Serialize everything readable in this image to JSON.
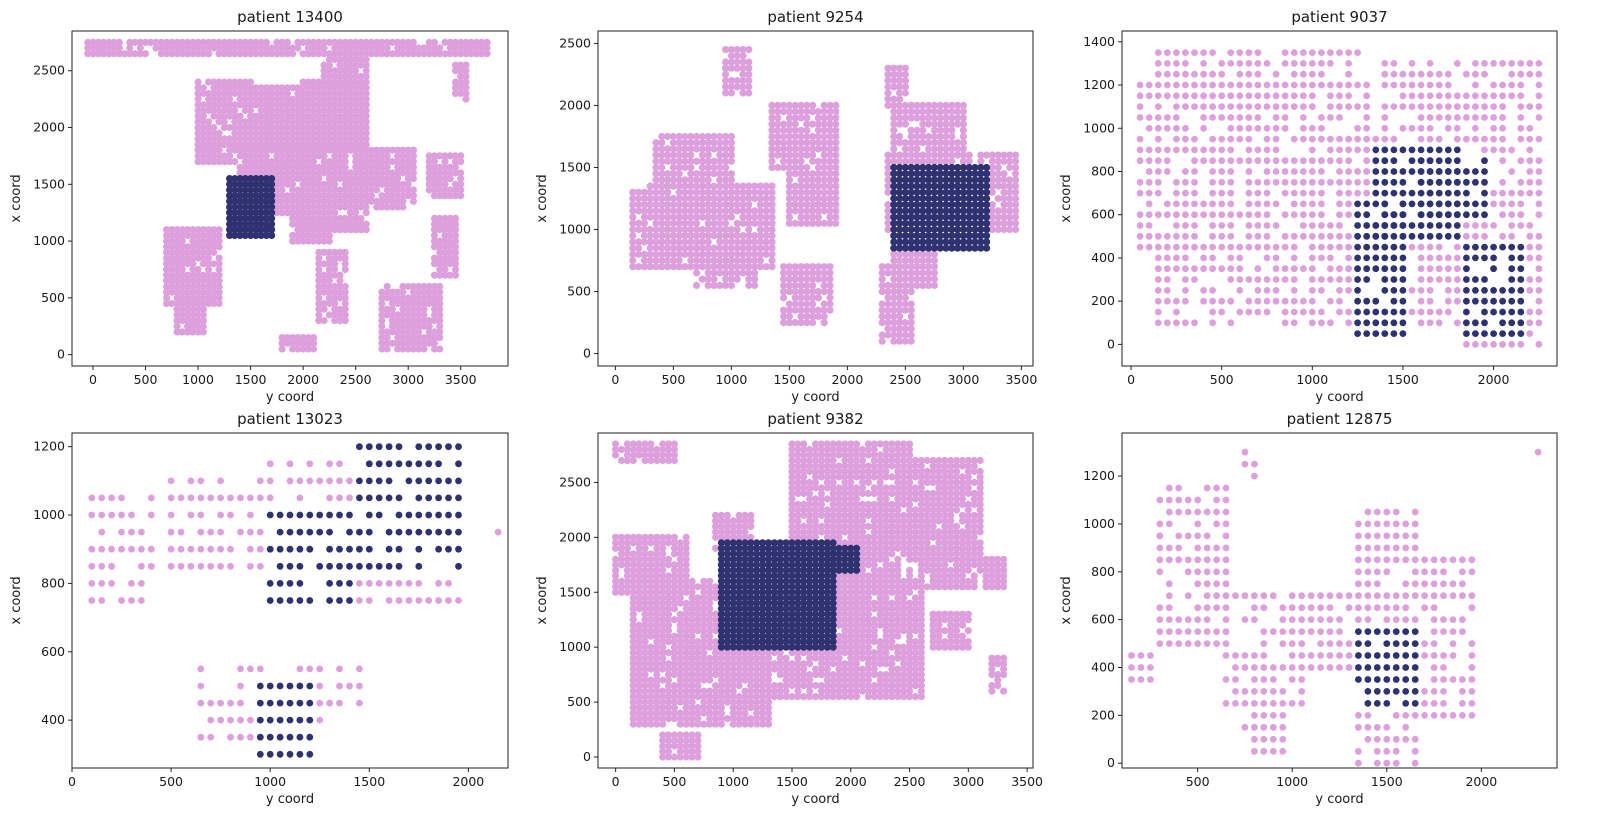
{
  "colors": {
    "healthy": "#dda0dd",
    "cancer": "#2f3270"
  },
  "chart_data": [
    {
      "type": "scatter",
      "title": "patient 13400",
      "xlabel": "y coord",
      "ylabel": "x coord",
      "xlim": [
        -200,
        3950
      ],
      "ylim": [
        -100,
        2850
      ],
      "xticks": [
        0,
        500,
        1000,
        1500,
        2000,
        2500,
        3000,
        3500
      ],
      "yticks": [
        0,
        500,
        1000,
        1500,
        2000,
        2500
      ],
      "step": 50,
      "healthy_regions": [
        [
          [
            -50,
            2650
          ],
          [
            3750,
            2750
          ]
        ],
        [
          [
            1000,
            1700
          ],
          [
            1500,
            2400
          ]
        ],
        [
          [
            1400,
            1250
          ],
          [
            2100,
            2000
          ]
        ],
        [
          [
            2000,
            1100
          ],
          [
            2600,
            2400
          ]
        ],
        [
          [
            2200,
            2100
          ],
          [
            2600,
            2650
          ]
        ],
        [
          [
            1500,
            1800
          ],
          [
            2500,
            2350
          ]
        ],
        [
          [
            700,
            450
          ],
          [
            1200,
            1100
          ]
        ],
        [
          [
            800,
            200
          ],
          [
            1050,
            600
          ]
        ],
        [
          [
            2500,
            1300
          ],
          [
            3050,
            1800
          ]
        ],
        [
          [
            1900,
            1000
          ],
          [
            2250,
            1350
          ]
        ],
        [
          [
            2150,
            300
          ],
          [
            2400,
            900
          ]
        ],
        [
          [
            3200,
            1400
          ],
          [
            3500,
            1750
          ]
        ],
        [
          [
            3250,
            700
          ],
          [
            3450,
            1200
          ]
        ],
        [
          [
            2750,
            50
          ],
          [
            3300,
            600
          ]
        ],
        [
          [
            1800,
            50
          ],
          [
            2100,
            150
          ]
        ],
        [
          [
            3450,
            2250
          ],
          [
            3550,
            2550
          ]
        ]
      ],
      "cancer_regions": [
        [
          [
            1300,
            1050
          ],
          [
            1700,
            1550
          ]
        ]
      ]
    },
    {
      "type": "scatter",
      "title": "patient 9254",
      "xlabel": "y coord",
      "ylabel": "x coord",
      "xlim": [
        -150,
        3600
      ],
      "ylim": [
        -100,
        2600
      ],
      "xticks": [
        0,
        500,
        1000,
        1500,
        2000,
        2500,
        3000,
        3500
      ],
      "yticks": [
        0,
        500,
        1000,
        1500,
        2000,
        2500
      ],
      "step": 50,
      "healthy_regions": [
        [
          [
            150,
            700
          ],
          [
            1350,
            1350
          ]
        ],
        [
          [
            350,
            1350
          ],
          [
            1000,
            1750
          ]
        ],
        [
          [
            700,
            550
          ],
          [
            1200,
            800
          ]
        ],
        [
          [
            1350,
            1500
          ],
          [
            1900,
            2000
          ]
        ],
        [
          [
            1500,
            1050
          ],
          [
            1900,
            1500
          ]
        ],
        [
          [
            1450,
            250
          ],
          [
            1850,
            700
          ]
        ],
        [
          [
            2300,
            100
          ],
          [
            2550,
            700
          ]
        ],
        [
          [
            2400,
            550
          ],
          [
            2750,
            1000
          ]
        ],
        [
          [
            2350,
            1000
          ],
          [
            3450,
            1600
          ]
        ],
        [
          [
            2400,
            1600
          ],
          [
            3000,
            2000
          ]
        ],
        [
          [
            2350,
            2000
          ],
          [
            2500,
            2300
          ]
        ],
        [
          [
            950,
            2100
          ],
          [
            1150,
            2450
          ]
        ]
      ],
      "cancer_regions": [
        [
          [
            2400,
            850
          ],
          [
            3200,
            1500
          ]
        ]
      ]
    },
    {
      "type": "scatter",
      "title": "patient 9037",
      "xlabel": "y coord",
      "ylabel": "x coord",
      "xlim": [
        -50,
        2350
      ],
      "ylim": [
        -100,
        1450
      ],
      "xticks": [
        0,
        500,
        1000,
        1500,
        2000
      ],
      "yticks": [
        0,
        200,
        400,
        600,
        800,
        1000,
        1200,
        1400
      ],
      "step": 50,
      "healthy_regions": [
        [
          [
            50,
            450
          ],
          [
            1300,
            1200
          ]
        ],
        [
          [
            150,
            100
          ],
          [
            1350,
            450
          ]
        ],
        [
          [
            150,
            1200
          ],
          [
            1250,
            1350
          ]
        ],
        [
          [
            1300,
            100
          ],
          [
            2250,
            1100
          ]
        ],
        [
          [
            1400,
            1100
          ],
          [
            2250,
            1300
          ]
        ],
        [
          [
            1850,
            0
          ],
          [
            2250,
            200
          ]
        ]
      ],
      "cancer_regions": [
        [
          [
            1250,
            50
          ],
          [
            1500,
            650
          ]
        ],
        [
          [
            1350,
            500
          ],
          [
            1800,
            900
          ]
        ],
        [
          [
            1600,
            600
          ],
          [
            1950,
            850
          ]
        ],
        [
          [
            1850,
            50
          ],
          [
            2150,
            450
          ]
        ]
      ]
    },
    {
      "type": "scatter",
      "title": "patient 13023",
      "xlabel": "y coord",
      "ylabel": "x coord",
      "xlim": [
        0,
        2200
      ],
      "ylim": [
        260,
        1240
      ],
      "xticks": [
        0,
        500,
        1000,
        1500,
        2000
      ],
      "yticks": [
        400,
        600,
        800,
        1000,
        1200
      ],
      "step": 50,
      "healthy_regions": [
        [
          [
            100,
            750
          ],
          [
            400,
            1050
          ]
        ],
        [
          [
            500,
            850
          ],
          [
            950,
            1100
          ]
        ],
        [
          [
            650,
            350
          ],
          [
            1300,
            550
          ]
        ],
        [
          [
            1350,
            450
          ],
          [
            1450,
            550
          ]
        ],
        [
          [
            1000,
            750
          ],
          [
            1950,
            1150
          ]
        ],
        [
          [
            2150,
            950
          ],
          [
            2150,
            950
          ]
        ]
      ],
      "cancer_regions": [
        [
          [
            950,
            300
          ],
          [
            1200,
            500
          ]
        ],
        [
          [
            1000,
            750
          ],
          [
            1400,
            1000
          ]
        ],
        [
          [
            1450,
            850
          ],
          [
            1950,
            1200
          ]
        ]
      ]
    },
    {
      "type": "scatter",
      "title": "patient 9382",
      "xlabel": "y coord",
      "ylabel": "x coord",
      "xlim": [
        -150,
        3550
      ],
      "ylim": [
        -100,
        2950
      ],
      "xticks": [
        0,
        500,
        1000,
        1500,
        2000,
        2500,
        3000,
        3500
      ],
      "yticks": [
        0,
        500,
        1000,
        1500,
        2000,
        2500
      ],
      "step": 50,
      "healthy_regions": [
        [
          [
            0,
            1500
          ],
          [
            600,
            2000
          ]
        ],
        [
          [
            150,
            300
          ],
          [
            1300,
            1600
          ]
        ],
        [
          [
            1200,
            550
          ],
          [
            2600,
            1600
          ]
        ],
        [
          [
            1500,
            1500
          ],
          [
            2500,
            2850
          ]
        ],
        [
          [
            2500,
            1800
          ],
          [
            3100,
            2700
          ]
        ],
        [
          [
            2600,
            1550
          ],
          [
            3300,
            1800
          ]
        ],
        [
          [
            400,
            0
          ],
          [
            700,
            200
          ]
        ],
        [
          [
            0,
            2700
          ],
          [
            500,
            2850
          ]
        ],
        [
          [
            3200,
            600
          ],
          [
            3300,
            900
          ]
        ],
        [
          [
            2700,
            1000
          ],
          [
            3000,
            1300
          ]
        ],
        [
          [
            850,
            1900
          ],
          [
            1150,
            2200
          ]
        ]
      ],
      "cancer_regions": [
        [
          [
            900,
            1000
          ],
          [
            1850,
            1950
          ]
        ],
        [
          [
            1800,
            1700
          ],
          [
            2050,
            1900
          ]
        ]
      ]
    },
    {
      "type": "scatter",
      "title": "patient 12875",
      "xlabel": "y coord",
      "ylabel": "x coord",
      "xlim": [
        100,
        2400
      ],
      "ylim": [
        -20,
        1380
      ],
      "xticks": [
        500,
        1000,
        1500,
        2000
      ],
      "yticks": [
        0,
        200,
        400,
        600,
        800,
        1000,
        1200
      ],
      "step": 50,
      "healthy_regions": [
        [
          [
            150,
            350
          ],
          [
            250,
            450
          ]
        ],
        [
          [
            300,
            500
          ],
          [
            650,
            1150
          ]
        ],
        [
          [
            650,
            250
          ],
          [
            1050,
            700
          ]
        ],
        [
          [
            750,
            50
          ],
          [
            950,
            250
          ]
        ],
        [
          [
            1000,
            400
          ],
          [
            1300,
            700
          ]
        ],
        [
          [
            1350,
            0
          ],
          [
            1650,
            1050
          ]
        ],
        [
          [
            1600,
            200
          ],
          [
            1950,
            850
          ]
        ],
        [
          [
            2200,
            1300
          ],
          [
            2300,
            1300
          ]
        ],
        [
          [
            750,
            1200
          ],
          [
            800,
            1300
          ]
        ]
      ],
      "cancer_regions": [
        [
          [
            1350,
            250
          ],
          [
            1650,
            550
          ]
        ]
      ]
    }
  ]
}
